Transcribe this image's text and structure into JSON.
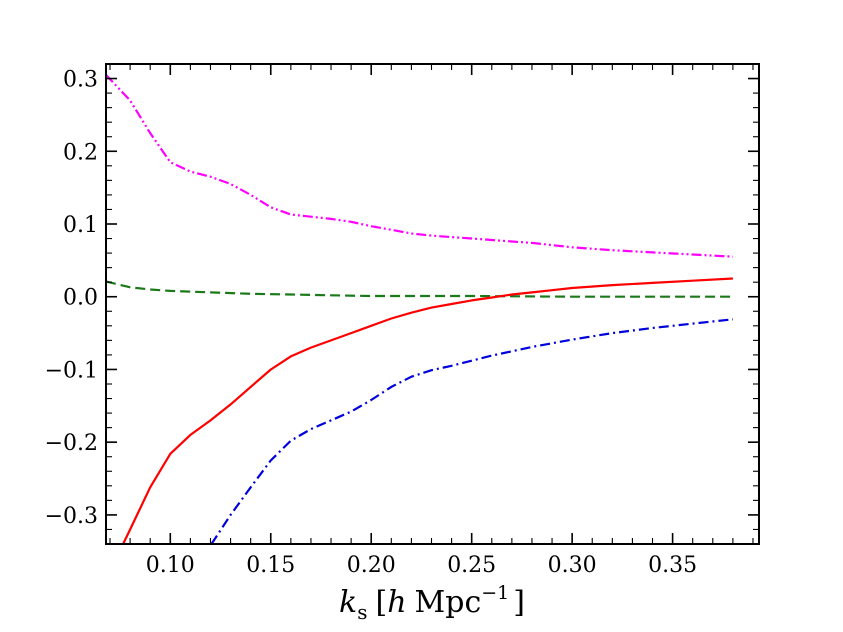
{
  "chart_data": {
    "type": "line",
    "title": "",
    "xlabel": {
      "var": "k",
      "sub": "s",
      "unit_h": "h",
      "unit_mpc": "Mpc",
      "exp": "−1"
    },
    "ylabel": "",
    "xlim": [
      0.068,
      0.393
    ],
    "ylim": [
      -0.34,
      0.32
    ],
    "xticks": [
      0.1,
      0.15,
      0.2,
      0.25,
      0.3,
      0.35
    ],
    "xtick_labels": [
      "0.10",
      "0.15",
      "0.20",
      "0.25",
      "0.30",
      "0.35"
    ],
    "yticks": [
      -0.3,
      -0.2,
      -0.1,
      0.0,
      0.1,
      0.2,
      0.3
    ],
    "ytick_labels": [
      "−0.3",
      "−0.2",
      "−0.1",
      "0.0",
      "0.1",
      "0.2",
      "0.3"
    ],
    "grid": false,
    "series": [
      {
        "name": "magenta-dash-dot-dot",
        "color": "#ff00ff",
        "style": "dashdotdot",
        "x": [
          0.068,
          0.08,
          0.09,
          0.1,
          0.11,
          0.12,
          0.13,
          0.14,
          0.15,
          0.16,
          0.17,
          0.18,
          0.19,
          0.2,
          0.21,
          0.22,
          0.23,
          0.24,
          0.25,
          0.26,
          0.27,
          0.28,
          0.29,
          0.3,
          0.32,
          0.34,
          0.36,
          0.38
        ],
        "y": [
          0.305,
          0.27,
          0.225,
          0.185,
          0.172,
          0.165,
          0.155,
          0.14,
          0.123,
          0.113,
          0.11,
          0.107,
          0.103,
          0.097,
          0.092,
          0.087,
          0.084,
          0.082,
          0.08,
          0.078,
          0.076,
          0.074,
          0.071,
          0.068,
          0.064,
          0.061,
          0.058,
          0.055
        ]
      },
      {
        "name": "green-dashed",
        "color": "#1a7a1a",
        "style": "dashed",
        "x": [
          0.068,
          0.08,
          0.09,
          0.1,
          0.12,
          0.14,
          0.16,
          0.18,
          0.2,
          0.25,
          0.3,
          0.35,
          0.38
        ],
        "y": [
          0.021,
          0.013,
          0.01,
          0.008,
          0.006,
          0.004,
          0.003,
          0.002,
          0.001,
          0.001,
          0.0,
          0.0,
          0.0
        ]
      },
      {
        "name": "red-solid",
        "color": "#ff0000",
        "style": "solid",
        "x": [
          0.0765,
          0.08,
          0.09,
          0.1,
          0.11,
          0.12,
          0.13,
          0.14,
          0.15,
          0.16,
          0.17,
          0.18,
          0.19,
          0.2,
          0.21,
          0.22,
          0.23,
          0.24,
          0.25,
          0.26,
          0.27,
          0.28,
          0.29,
          0.3,
          0.32,
          0.34,
          0.36,
          0.38
        ],
        "y": [
          -0.34,
          -0.32,
          -0.262,
          -0.216,
          -0.19,
          -0.17,
          -0.148,
          -0.124,
          -0.1,
          -0.082,
          -0.07,
          -0.06,
          -0.05,
          -0.04,
          -0.03,
          -0.022,
          -0.015,
          -0.01,
          -0.005,
          -0.001,
          0.003,
          0.006,
          0.009,
          0.012,
          0.016,
          0.019,
          0.022,
          0.025
        ]
      },
      {
        "name": "blue-dash-dot",
        "color": "#0000dd",
        "style": "dashdot",
        "x": [
          0.1205,
          0.13,
          0.14,
          0.15,
          0.16,
          0.17,
          0.18,
          0.19,
          0.2,
          0.21,
          0.22,
          0.23,
          0.24,
          0.25,
          0.26,
          0.27,
          0.28,
          0.29,
          0.3,
          0.32,
          0.34,
          0.36,
          0.38
        ],
        "y": [
          -0.34,
          -0.3,
          -0.262,
          -0.225,
          -0.198,
          -0.182,
          -0.17,
          -0.158,
          -0.142,
          -0.124,
          -0.11,
          -0.101,
          -0.095,
          -0.088,
          -0.081,
          -0.075,
          -0.069,
          -0.064,
          -0.059,
          -0.05,
          -0.043,
          -0.037,
          -0.031
        ]
      }
    ]
  }
}
